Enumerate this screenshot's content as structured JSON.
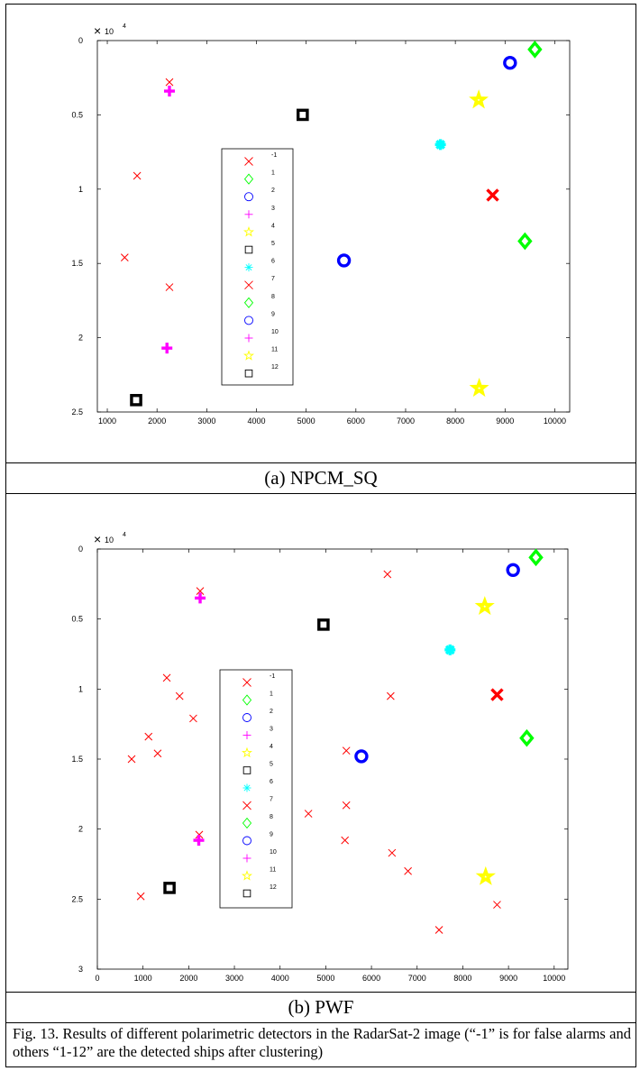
{
  "figure": {
    "panel_a_label": "(a) NPCM_SQ",
    "panel_b_label": "(b) PWF",
    "caption": "Fig. 13. Results of different polarimetric detectors in the RadarSat-2 image (“-1” is for false alarms and others “1-12” are the detected ships after clustering)"
  },
  "legend": {
    "entries": [
      {
        "label": "-1",
        "marker": "x",
        "color": "#ff0000"
      },
      {
        "label": "1",
        "marker": "diamond",
        "color": "#00ff00"
      },
      {
        "label": "2",
        "marker": "circle",
        "color": "#0000ff"
      },
      {
        "label": "3",
        "marker": "plus",
        "color": "#ff00ff"
      },
      {
        "label": "4",
        "marker": "star",
        "color": "#ffff00"
      },
      {
        "label": "5",
        "marker": "square",
        "color": "#000000"
      },
      {
        "label": "6",
        "marker": "asterisk",
        "color": "#00ffff"
      },
      {
        "label": "7",
        "marker": "x",
        "color": "#ff0000"
      },
      {
        "label": "8",
        "marker": "diamond",
        "color": "#00ff00"
      },
      {
        "label": "9",
        "marker": "circle",
        "color": "#0000ff"
      },
      {
        "label": "10",
        "marker": "plus",
        "color": "#ff00ff"
      },
      {
        "label": "11",
        "marker": "star",
        "color": "#ffff00"
      },
      {
        "label": "12",
        "marker": "square",
        "color": "#000000"
      }
    ]
  },
  "chart_data": [
    {
      "type": "scatter",
      "title": "(a) NPCM_SQ",
      "xlim": [
        800,
        10300
      ],
      "ylim": [
        0,
        2.5
      ],
      "y_reversed": true,
      "y_exponent_label": "10",
      "y_exponent_power": "4",
      "xticks": [
        1000,
        2000,
        3000,
        4000,
        5000,
        6000,
        7000,
        8000,
        9000,
        10000
      ],
      "yticks": [
        0,
        0.5,
        1,
        1.5,
        2,
        2.5
      ],
      "ytick_labels": [
        "0",
        "0.5",
        "1",
        "1.5",
        "2",
        "2.5"
      ],
      "legend_position": "center-left",
      "points": [
        {
          "series": "-1",
          "x": 2250,
          "y": 0.28,
          "marker": "x",
          "color": "#ff0000"
        },
        {
          "series": "-1",
          "x": 1600,
          "y": 0.91,
          "marker": "x",
          "color": "#ff0000"
        },
        {
          "series": "-1",
          "x": 1350,
          "y": 1.46,
          "marker": "x",
          "color": "#ff0000"
        },
        {
          "series": "-1",
          "x": 2250,
          "y": 1.66,
          "marker": "x",
          "color": "#ff0000"
        },
        {
          "series": "1",
          "x": 9600,
          "y": 0.06,
          "marker": "diamond",
          "color": "#00ff00"
        },
        {
          "series": "2",
          "x": 9100,
          "y": 0.15,
          "marker": "circle",
          "color": "#0000ff"
        },
        {
          "series": "3",
          "x": 2250,
          "y": 0.34,
          "marker": "plus",
          "color": "#ff00ff"
        },
        {
          "series": "4",
          "x": 8470,
          "y": 0.4,
          "marker": "star",
          "color": "#ffff00"
        },
        {
          "series": "5",
          "x": 4930,
          "y": 0.5,
          "marker": "square",
          "color": "#000000"
        },
        {
          "series": "6",
          "x": 7700,
          "y": 0.7,
          "marker": "asterisk",
          "color": "#00ffff"
        },
        {
          "series": "7",
          "x": 8750,
          "y": 1.04,
          "marker": "x",
          "color": "#ff0000"
        },
        {
          "series": "8",
          "x": 9400,
          "y": 1.35,
          "marker": "diamond",
          "color": "#00ff00"
        },
        {
          "series": "9",
          "x": 5760,
          "y": 1.48,
          "marker": "circle",
          "color": "#0000ff"
        },
        {
          "series": "10",
          "x": 2200,
          "y": 2.07,
          "marker": "plus",
          "color": "#ff00ff"
        },
        {
          "series": "11",
          "x": 8480,
          "y": 2.34,
          "marker": "star",
          "color": "#ffff00"
        },
        {
          "series": "12",
          "x": 1580,
          "y": 2.42,
          "marker": "square",
          "color": "#000000"
        }
      ]
    },
    {
      "type": "scatter",
      "title": "(b) PWF",
      "xlim": [
        0,
        10300
      ],
      "ylim": [
        0,
        3
      ],
      "y_reversed": true,
      "y_exponent_label": "10",
      "y_exponent_power": "4",
      "xticks": [
        0,
        1000,
        2000,
        3000,
        4000,
        5000,
        6000,
        7000,
        8000,
        9000,
        10000
      ],
      "yticks": [
        0,
        0.5,
        1,
        1.5,
        2,
        2.5,
        3
      ],
      "ytick_labels": [
        "0",
        "0.5",
        "1",
        "1.5",
        "2",
        "2.5",
        "3"
      ],
      "legend_position": "center-left",
      "points": [
        {
          "series": "-1",
          "x": 6350,
          "y": 0.18,
          "marker": "x",
          "color": "#ff0000"
        },
        {
          "series": "-1",
          "x": 2250,
          "y": 0.3,
          "marker": "x",
          "color": "#ff0000"
        },
        {
          "series": "-1",
          "x": 1520,
          "y": 0.92,
          "marker": "x",
          "color": "#ff0000"
        },
        {
          "series": "-1",
          "x": 1800,
          "y": 1.05,
          "marker": "x",
          "color": "#ff0000"
        },
        {
          "series": "-1",
          "x": 6420,
          "y": 1.05,
          "marker": "x",
          "color": "#ff0000"
        },
        {
          "series": "-1",
          "x": 2100,
          "y": 1.21,
          "marker": "x",
          "color": "#ff0000"
        },
        {
          "series": "-1",
          "x": 1120,
          "y": 1.34,
          "marker": "x",
          "color": "#ff0000"
        },
        {
          "series": "-1",
          "x": 5450,
          "y": 1.44,
          "marker": "x",
          "color": "#ff0000"
        },
        {
          "series": "-1",
          "x": 1320,
          "y": 1.46,
          "marker": "x",
          "color": "#ff0000"
        },
        {
          "series": "-1",
          "x": 750,
          "y": 1.5,
          "marker": "x",
          "color": "#ff0000"
        },
        {
          "series": "-1",
          "x": 5450,
          "y": 1.83,
          "marker": "x",
          "color": "#ff0000"
        },
        {
          "series": "-1",
          "x": 4620,
          "y": 1.89,
          "marker": "x",
          "color": "#ff0000"
        },
        {
          "series": "-1",
          "x": 2230,
          "y": 2.04,
          "marker": "x",
          "color": "#ff0000"
        },
        {
          "series": "-1",
          "x": 5420,
          "y": 2.08,
          "marker": "x",
          "color": "#ff0000"
        },
        {
          "series": "-1",
          "x": 6450,
          "y": 2.17,
          "marker": "x",
          "color": "#ff0000"
        },
        {
          "series": "-1",
          "x": 6800,
          "y": 2.3,
          "marker": "x",
          "color": "#ff0000"
        },
        {
          "series": "-1",
          "x": 950,
          "y": 2.48,
          "marker": "x",
          "color": "#ff0000"
        },
        {
          "series": "-1",
          "x": 8750,
          "y": 2.54,
          "marker": "x",
          "color": "#ff0000"
        },
        {
          "series": "-1",
          "x": 7480,
          "y": 2.72,
          "marker": "x",
          "color": "#ff0000"
        },
        {
          "series": "1",
          "x": 9600,
          "y": 0.06,
          "marker": "diamond",
          "color": "#00ff00"
        },
        {
          "series": "2",
          "x": 9100,
          "y": 0.15,
          "marker": "circle",
          "color": "#0000ff"
        },
        {
          "series": "3",
          "x": 2250,
          "y": 0.35,
          "marker": "plus",
          "color": "#ff00ff"
        },
        {
          "series": "4",
          "x": 8480,
          "y": 0.41,
          "marker": "star",
          "color": "#ffff00"
        },
        {
          "series": "5",
          "x": 4950,
          "y": 0.54,
          "marker": "square",
          "color": "#000000"
        },
        {
          "series": "6",
          "x": 7720,
          "y": 0.72,
          "marker": "asterisk",
          "color": "#00ffff"
        },
        {
          "series": "7",
          "x": 8750,
          "y": 1.04,
          "marker": "x",
          "color": "#ff0000"
        },
        {
          "series": "8",
          "x": 9400,
          "y": 1.35,
          "marker": "diamond",
          "color": "#00ff00"
        },
        {
          "series": "9",
          "x": 5780,
          "y": 1.48,
          "marker": "circle",
          "color": "#0000ff"
        },
        {
          "series": "10",
          "x": 2220,
          "y": 2.08,
          "marker": "plus",
          "color": "#ff00ff"
        },
        {
          "series": "11",
          "x": 8500,
          "y": 2.34,
          "marker": "star",
          "color": "#ffff00"
        },
        {
          "series": "12",
          "x": 1580,
          "y": 2.42,
          "marker": "square",
          "color": "#000000"
        }
      ]
    }
  ]
}
